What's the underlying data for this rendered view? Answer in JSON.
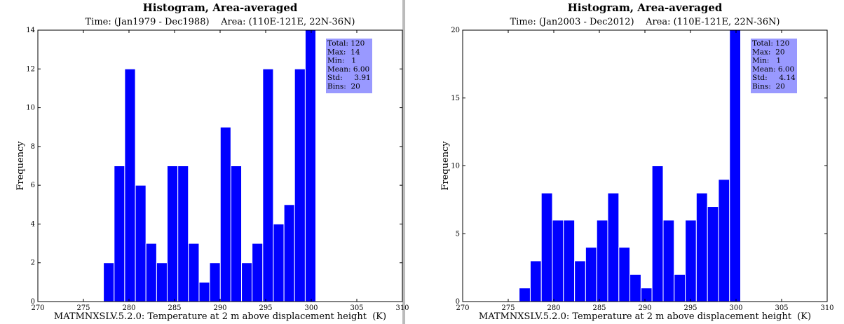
{
  "chart_data": [
    {
      "type": "histogram",
      "title": "Histogram, Area-averaged",
      "subtitle": "Time: (Jan1979 - Dec1988)    Area: (110E-121E, 22N-36N)",
      "xlabel": "MATMNXSLV.5.2.0: Temperature at 2 m above displacement height  (K)",
      "ylabel": "Frequency",
      "bins": [
        277.2,
        278.37,
        279.53,
        280.7,
        281.86,
        283.03,
        284.19,
        285.36,
        286.52,
        287.69,
        288.85,
        290.02,
        291.18,
        292.35,
        293.51,
        294.68,
        295.84,
        297.01,
        298.17,
        299.34,
        300.5
      ],
      "values": [
        2,
        7,
        12,
        6,
        3,
        2,
        7,
        7,
        3,
        1,
        2,
        9,
        7,
        2,
        3,
        12,
        4,
        5,
        12,
        14
      ],
      "color": "#0000ff",
      "xlim": [
        270,
        310
      ],
      "xticks": [
        270,
        275,
        280,
        285,
        290,
        295,
        300,
        305,
        310
      ],
      "ylim": [
        0,
        14
      ],
      "yticks": [
        0,
        2,
        4,
        6,
        8,
        10,
        12,
        14
      ],
      "stats": [
        "Total: 120",
        "Max:  14",
        "Min:   1",
        "Mean: 6.00",
        "Std:     3.91",
        "Bins:  20"
      ]
    },
    {
      "type": "histogram",
      "title": "Histogram, Area-averaged",
      "subtitle": "Time: (Jan2003 - Dec2012)    Area: (110E-121E, 22N-36N)",
      "xlabel": "MATMNXSLV.5.2.0: Temperature at 2 m above displacement height  (K)",
      "ylabel": "Frequency",
      "bins": [
        276.2,
        277.42,
        278.63,
        279.85,
        281.06,
        282.28,
        283.49,
        284.71,
        285.92,
        287.14,
        288.35,
        289.57,
        290.78,
        292.0,
        293.21,
        294.43,
        295.64,
        296.86,
        298.07,
        299.29,
        300.5
      ],
      "values": [
        1,
        3,
        8,
        6,
        6,
        3,
        4,
        6,
        8,
        4,
        2,
        1,
        10,
        6,
        2,
        6,
        8,
        7,
        9,
        20
      ],
      "color": "#0000ff",
      "xlim": [
        270,
        310
      ],
      "xticks": [
        270,
        275,
        280,
        285,
        290,
        295,
        300,
        305,
        310
      ],
      "ylim": [
        0,
        20
      ],
      "yticks": [
        0,
        5,
        10,
        15,
        20
      ],
      "stats": [
        "Total: 120",
        "Max:  20",
        "Min:   1",
        "Mean: 6.00",
        "Std:     4.14",
        "Bins:  20"
      ]
    }
  ]
}
